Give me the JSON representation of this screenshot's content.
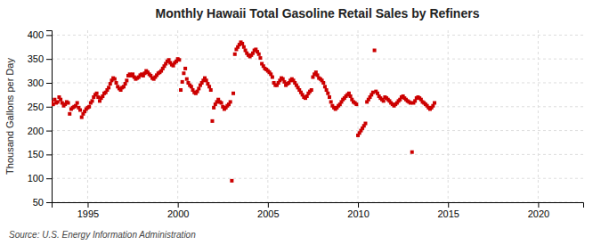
{
  "chart_data": {
    "type": "scatter",
    "title": "Monthly Hawaii Total Gasoline Retail Sales by Refiners",
    "ylabel": "Thousand Gallons per Day",
    "annotations": [
      "Source: U.S. Energy Information Administration"
    ],
    "color": "#cc0000",
    "marker": "square",
    "grid": true,
    "xlim": [
      1993.0,
      2022.5
    ],
    "ylim": [
      50,
      410
    ],
    "xticks": [
      1995,
      2000,
      2005,
      2010,
      2015,
      2020
    ],
    "yticks": [
      50,
      100,
      150,
      200,
      250,
      300,
      350,
      400
    ],
    "x": [
      1993.0,
      1993.083,
      1993.167,
      1993.25,
      1993.333,
      1993.417,
      1993.5,
      1993.583,
      1993.667,
      1993.75,
      1993.833,
      1993.917,
      1994.0,
      1994.083,
      1994.167,
      1994.25,
      1994.333,
      1994.417,
      1994.5,
      1994.583,
      1994.667,
      1994.75,
      1994.833,
      1994.917,
      1995.0,
      1995.083,
      1995.167,
      1995.25,
      1995.333,
      1995.417,
      1995.5,
      1995.583,
      1995.667,
      1995.75,
      1995.833,
      1995.917,
      1996.0,
      1996.083,
      1996.167,
      1996.25,
      1996.333,
      1996.417,
      1996.5,
      1996.583,
      1996.667,
      1996.75,
      1996.833,
      1996.917,
      1997.0,
      1997.083,
      1997.167,
      1997.25,
      1997.333,
      1997.417,
      1997.5,
      1997.583,
      1997.667,
      1997.75,
      1997.833,
      1997.917,
      1998.0,
      1998.083,
      1998.167,
      1998.25,
      1998.333,
      1998.417,
      1998.5,
      1998.583,
      1998.667,
      1998.75,
      1998.833,
      1998.917,
      1999.0,
      1999.083,
      1999.167,
      1999.25,
      1999.333,
      1999.417,
      1999.5,
      1999.583,
      1999.667,
      1999.75,
      1999.833,
      1999.917,
      2000.0,
      2000.083,
      2000.167,
      2000.25,
      2000.333,
      2000.417,
      2000.5,
      2000.583,
      2000.667,
      2000.75,
      2000.833,
      2000.917,
      2001.0,
      2001.083,
      2001.167,
      2001.25,
      2001.333,
      2001.417,
      2001.5,
      2001.583,
      2001.667,
      2001.75,
      2001.833,
      2001.917,
      2002.0,
      2002.083,
      2002.167,
      2002.25,
      2002.333,
      2002.417,
      2002.5,
      2002.583,
      2002.667,
      2002.75,
      2002.833,
      2002.917,
      2003.0,
      2003.083,
      2003.167,
      2003.25,
      2003.333,
      2003.417,
      2003.5,
      2003.583,
      2003.667,
      2003.75,
      2003.833,
      2003.917,
      2004.0,
      2004.083,
      2004.167,
      2004.25,
      2004.333,
      2004.417,
      2004.5,
      2004.583,
      2004.667,
      2004.75,
      2004.833,
      2004.917,
      2005.0,
      2005.083,
      2005.167,
      2005.25,
      2005.333,
      2005.417,
      2005.5,
      2005.583,
      2005.667,
      2005.75,
      2005.833,
      2005.917,
      2006.0,
      2006.083,
      2006.167,
      2006.25,
      2006.333,
      2006.417,
      2006.5,
      2006.583,
      2006.667,
      2006.75,
      2006.833,
      2006.917,
      2007.0,
      2007.083,
      2007.167,
      2007.25,
      2007.333,
      2007.417,
      2007.5,
      2007.583,
      2007.667,
      2007.75,
      2007.833,
      2007.917,
      2008.0,
      2008.083,
      2008.167,
      2008.25,
      2008.333,
      2008.417,
      2008.5,
      2008.583,
      2008.667,
      2008.75,
      2008.833,
      2008.917,
      2009.0,
      2009.083,
      2009.167,
      2009.25,
      2009.333,
      2009.417,
      2009.5,
      2009.583,
      2009.667,
      2009.75,
      2009.833,
      2009.917,
      2010.0,
      2010.083,
      2010.167,
      2010.25,
      2010.333,
      2010.417,
      2010.5,
      2010.583,
      2010.667,
      2010.75,
      2010.833,
      2010.917,
      2011.0,
      2011.083,
      2011.167,
      2011.25,
      2011.333,
      2011.417,
      2011.5,
      2011.583,
      2011.667,
      2011.75,
      2011.833,
      2011.917,
      2012.0,
      2012.083,
      2012.167,
      2012.25,
      2012.333,
      2012.417,
      2012.5,
      2012.583,
      2012.667,
      2012.75,
      2012.833,
      2012.917,
      2013.0,
      2013.083,
      2013.167,
      2013.25,
      2013.333,
      2013.417,
      2013.5,
      2013.583,
      2013.667,
      2013.75,
      2013.833,
      2013.917,
      2014.0,
      2014.083,
      2014.167,
      2014.25
    ],
    "values": [
      260,
      255,
      265,
      258,
      260,
      270,
      265,
      258,
      252,
      255,
      260,
      258,
      235,
      245,
      248,
      250,
      252,
      258,
      248,
      243,
      228,
      235,
      240,
      245,
      248,
      250,
      258,
      262,
      270,
      275,
      278,
      270,
      262,
      268,
      272,
      278,
      280,
      285,
      290,
      298,
      305,
      310,
      308,
      300,
      292,
      288,
      285,
      290,
      292,
      298,
      305,
      315,
      318,
      315,
      318,
      312,
      308,
      310,
      312,
      316,
      318,
      315,
      320,
      325,
      322,
      318,
      315,
      310,
      308,
      312,
      316,
      320,
      322,
      325,
      330,
      335,
      340,
      345,
      348,
      342,
      338,
      336,
      342,
      345,
      350,
      348,
      285,
      302,
      320,
      330,
      308,
      300,
      295,
      292,
      285,
      280,
      278,
      282,
      288,
      295,
      300,
      305,
      310,
      305,
      298,
      292,
      285,
      220,
      248,
      255,
      260,
      265,
      260,
      258,
      250,
      245,
      248,
      252,
      255,
      260,
      95,
      278,
      360,
      370,
      375,
      380,
      385,
      382,
      375,
      368,
      362,
      358,
      355,
      358,
      362,
      368,
      370,
      365,
      360,
      352,
      340,
      335,
      330,
      328,
      325,
      322,
      318,
      312,
      300,
      295,
      295,
      300,
      305,
      310,
      308,
      302,
      295,
      298,
      300,
      305,
      308,
      305,
      300,
      295,
      290,
      285,
      280,
      275,
      270,
      268,
      272,
      278,
      282,
      285,
      312,
      318,
      322,
      316,
      310,
      308,
      305,
      300,
      292,
      285,
      278,
      270,
      260,
      252,
      248,
      245,
      248,
      252,
      255,
      260,
      265,
      268,
      272,
      275,
      278,
      272,
      265,
      260,
      258,
      255,
      190,
      195,
      200,
      205,
      210,
      215,
      260,
      265,
      270,
      275,
      280,
      368,
      282,
      278,
      272,
      268,
      265,
      262,
      270,
      268,
      265,
      262,
      258,
      255,
      252,
      255,
      258,
      262,
      265,
      270,
      272,
      268,
      265,
      262,
      260,
      258,
      155,
      258,
      262,
      268,
      270,
      268,
      265,
      260,
      258,
      255,
      252,
      248,
      245,
      248,
      252,
      258
    ]
  }
}
